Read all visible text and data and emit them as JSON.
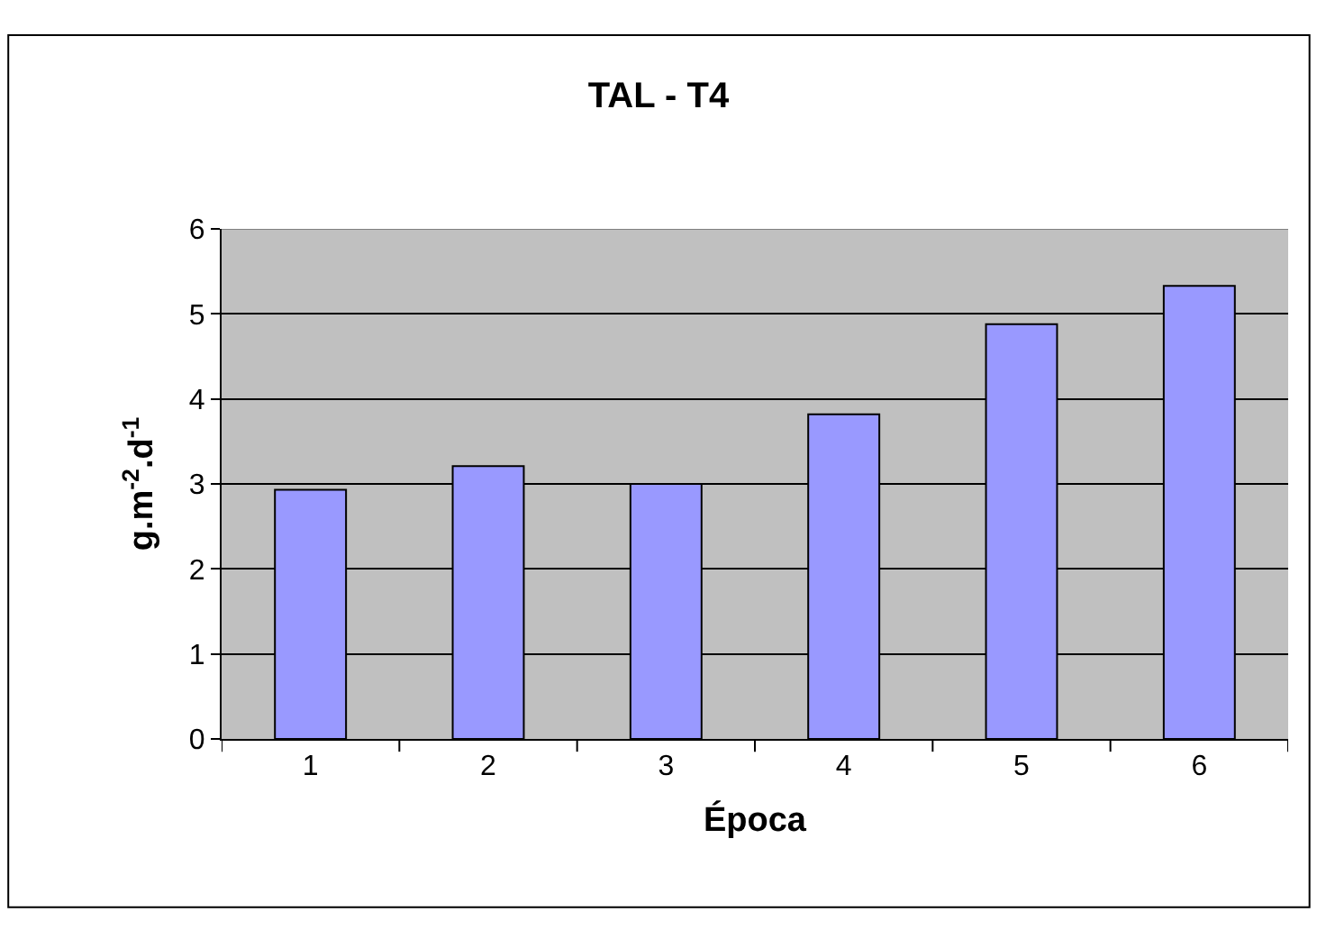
{
  "chart_data": {
    "type": "bar",
    "title": "TAL - T4",
    "xlabel": "Época",
    "ylabel": "g.m$^{-2}$.d$^{-1}$",
    "categories": [
      "1",
      "2",
      "3",
      "4",
      "5",
      "6"
    ],
    "values": [
      2.93,
      3.21,
      3.0,
      3.82,
      4.88,
      5.33
    ],
    "color": "#9999ff",
    "ylim": [
      0,
      6
    ],
    "yticks": [
      0,
      1,
      2,
      3,
      4,
      5,
      6
    ],
    "grid": "y"
  }
}
